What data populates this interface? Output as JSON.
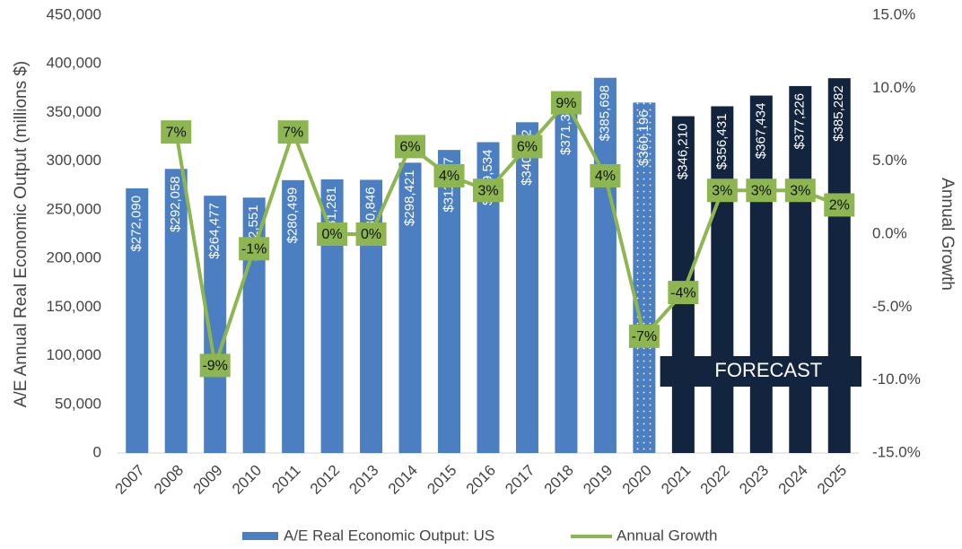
{
  "chart_data": {
    "type": "bar",
    "y_label": "A/E Annual Real Economic Output (millions $)",
    "y2_label": "Annual Growth",
    "annotation": "FORECAST",
    "categories": [
      "2007",
      "2008",
      "2009",
      "2010",
      "2011",
      "2012",
      "2013",
      "2014",
      "2015",
      "2016",
      "2017",
      "2018",
      "2019",
      "2020",
      "2021",
      "2022",
      "2023",
      "2024",
      "2025"
    ],
    "series": [
      {
        "name": "A/E Real Economic Output: US",
        "type": "bar",
        "color": "#4b7fc2",
        "colors": [
          "#4b7fc2",
          "#4b7fc2",
          "#4b7fc2",
          "#4b7fc2",
          "#4b7fc2",
          "#4b7fc2",
          "#4b7fc2",
          "#4b7fc2",
          "#4b7fc2",
          "#4b7fc2",
          "#4b7fc2",
          "#4b7fc2",
          "#4b7fc2",
          "#4b7fc2",
          "#13243f",
          "#13243f",
          "#13243f",
          "#13243f",
          "#13243f"
        ],
        "patterns": [
          null,
          null,
          null,
          null,
          null,
          null,
          null,
          null,
          null,
          null,
          null,
          null,
          null,
          "dots",
          null,
          null,
          null,
          null,
          null
        ],
        "values": [
          272090,
          292058,
          264477,
          262551,
          280499,
          281281,
          280846,
          298421,
          311527,
          319534,
          340012,
          371345,
          385698,
          360196,
          346210,
          356431,
          367434,
          377226,
          385282
        ],
        "value_labels": [
          "$272,090",
          "$292,058",
          "$264,477",
          "$262,551",
          "$280,499",
          "$281,281",
          "$280,846",
          "$298,421",
          "$311,527",
          "$319,534",
          "$340,012",
          "$371,345",
          "$385,698",
          "$360,196",
          "$346,210",
          "$356,431",
          "$367,434",
          "$377,226",
          "$385,282"
        ]
      },
      {
        "name": "Annual Growth",
        "type": "line",
        "axis": "y2",
        "color": "#8db650",
        "values": [
          null,
          7,
          -9,
          -1,
          7,
          0,
          0,
          6,
          4,
          3,
          6,
          9,
          4,
          -7,
          -4,
          3,
          3,
          3,
          2
        ],
        "value_labels": [
          null,
          "7%",
          "-9%",
          "-1%",
          "7%",
          "0%",
          "0%",
          "6%",
          "4%",
          "3%",
          "6%",
          "9%",
          "4%",
          "-7%",
          "-4%",
          "3%",
          "3%",
          "3%",
          "2%"
        ]
      }
    ],
    "ylim": [
      0,
      450000
    ],
    "yticks": [
      0,
      {
        "value": 50000,
        "label": "50,000"
      },
      {
        "value": 100000,
        "label": "100,000"
      },
      {
        "value": 150000,
        "label": "150,000"
      },
      {
        "value": 200000,
        "label": "200,000"
      },
      {
        "value": 250000,
        "label": "250,000"
      },
      {
        "value": 300000,
        "label": "300,000"
      },
      {
        "value": 350000,
        "label": "350,000"
      },
      {
        "value": 400000,
        "label": "400,000"
      },
      {
        "value": 450000,
        "label": "450,000"
      }
    ],
    "y2lim": [
      -15,
      15
    ],
    "y2ticks": [
      {
        "value": -15,
        "label": "-15.0%"
      },
      {
        "value": -10,
        "label": "-10.0%"
      },
      {
        "value": -5,
        "label": "-5.0%"
      },
      {
        "value": 0,
        "label": "0.0%"
      },
      {
        "value": 5,
        "label": "5.0%"
      },
      {
        "value": 10,
        "label": "10.0%"
      },
      {
        "value": 15,
        "label": "15.0%"
      }
    ],
    "legend": "bottom"
  }
}
